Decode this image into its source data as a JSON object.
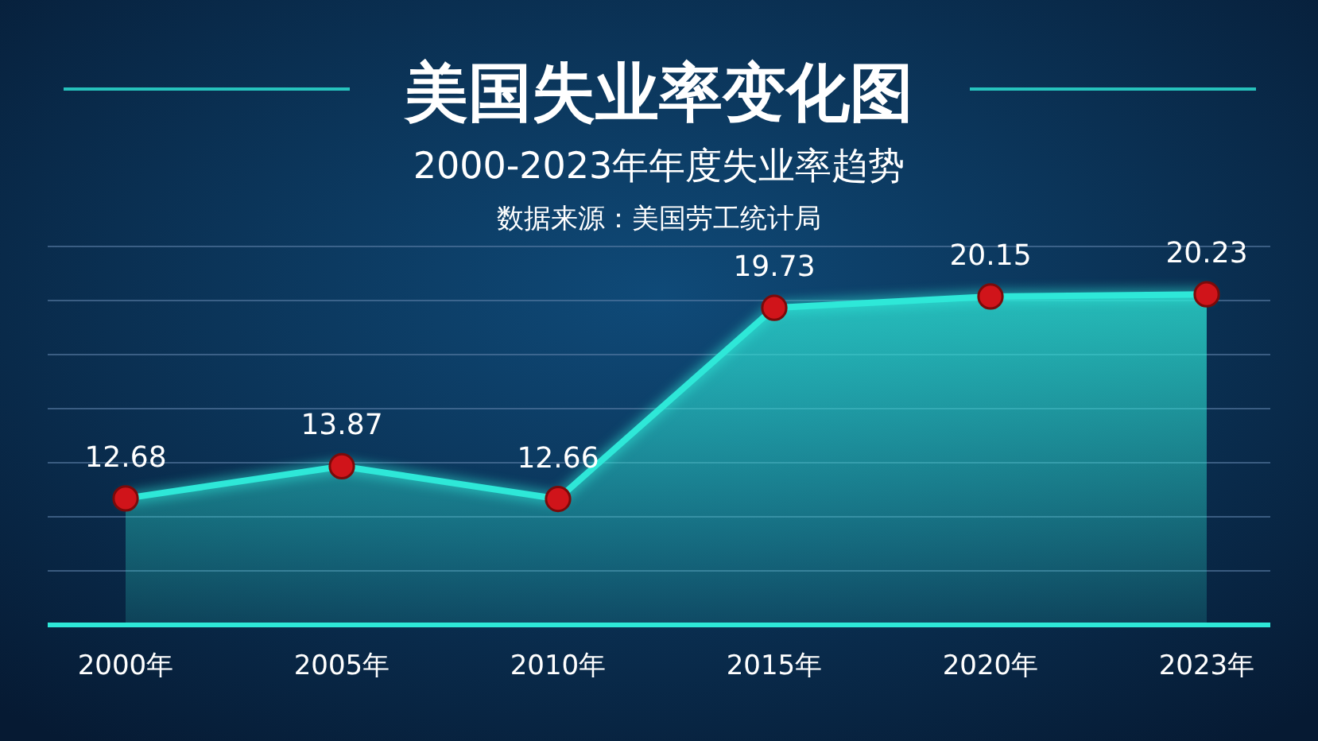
{
  "chart_data": {
    "type": "area",
    "title": "美国失业率变化图",
    "subtitle": "2000-2023年年度失业率趋势",
    "annotations": [
      "数据来源：美国劳工统计局"
    ],
    "categories": [
      "2000年",
      "2005年",
      "2010年",
      "2015年",
      "2020年",
      "2023年"
    ],
    "series": [
      {
        "color": "#2ee8d8",
        "values": [
          12.68,
          13.87,
          12.66,
          19.73,
          20.15,
          20.23
        ]
      }
    ],
    "ylim": [
      8,
      22
    ],
    "yticks": [
      {
        "value": 10,
        "label": null
      },
      {
        "value": 12,
        "label": null
      },
      {
        "value": 14,
        "label": null
      },
      {
        "value": 16,
        "label": null
      },
      {
        "value": 18,
        "label": null
      },
      {
        "value": 20,
        "label": null
      },
      {
        "value": 22,
        "label": null
      }
    ],
    "tick_labels": "x",
    "grid": "y",
    "marker": "circle",
    "data_labels": true
  }
}
